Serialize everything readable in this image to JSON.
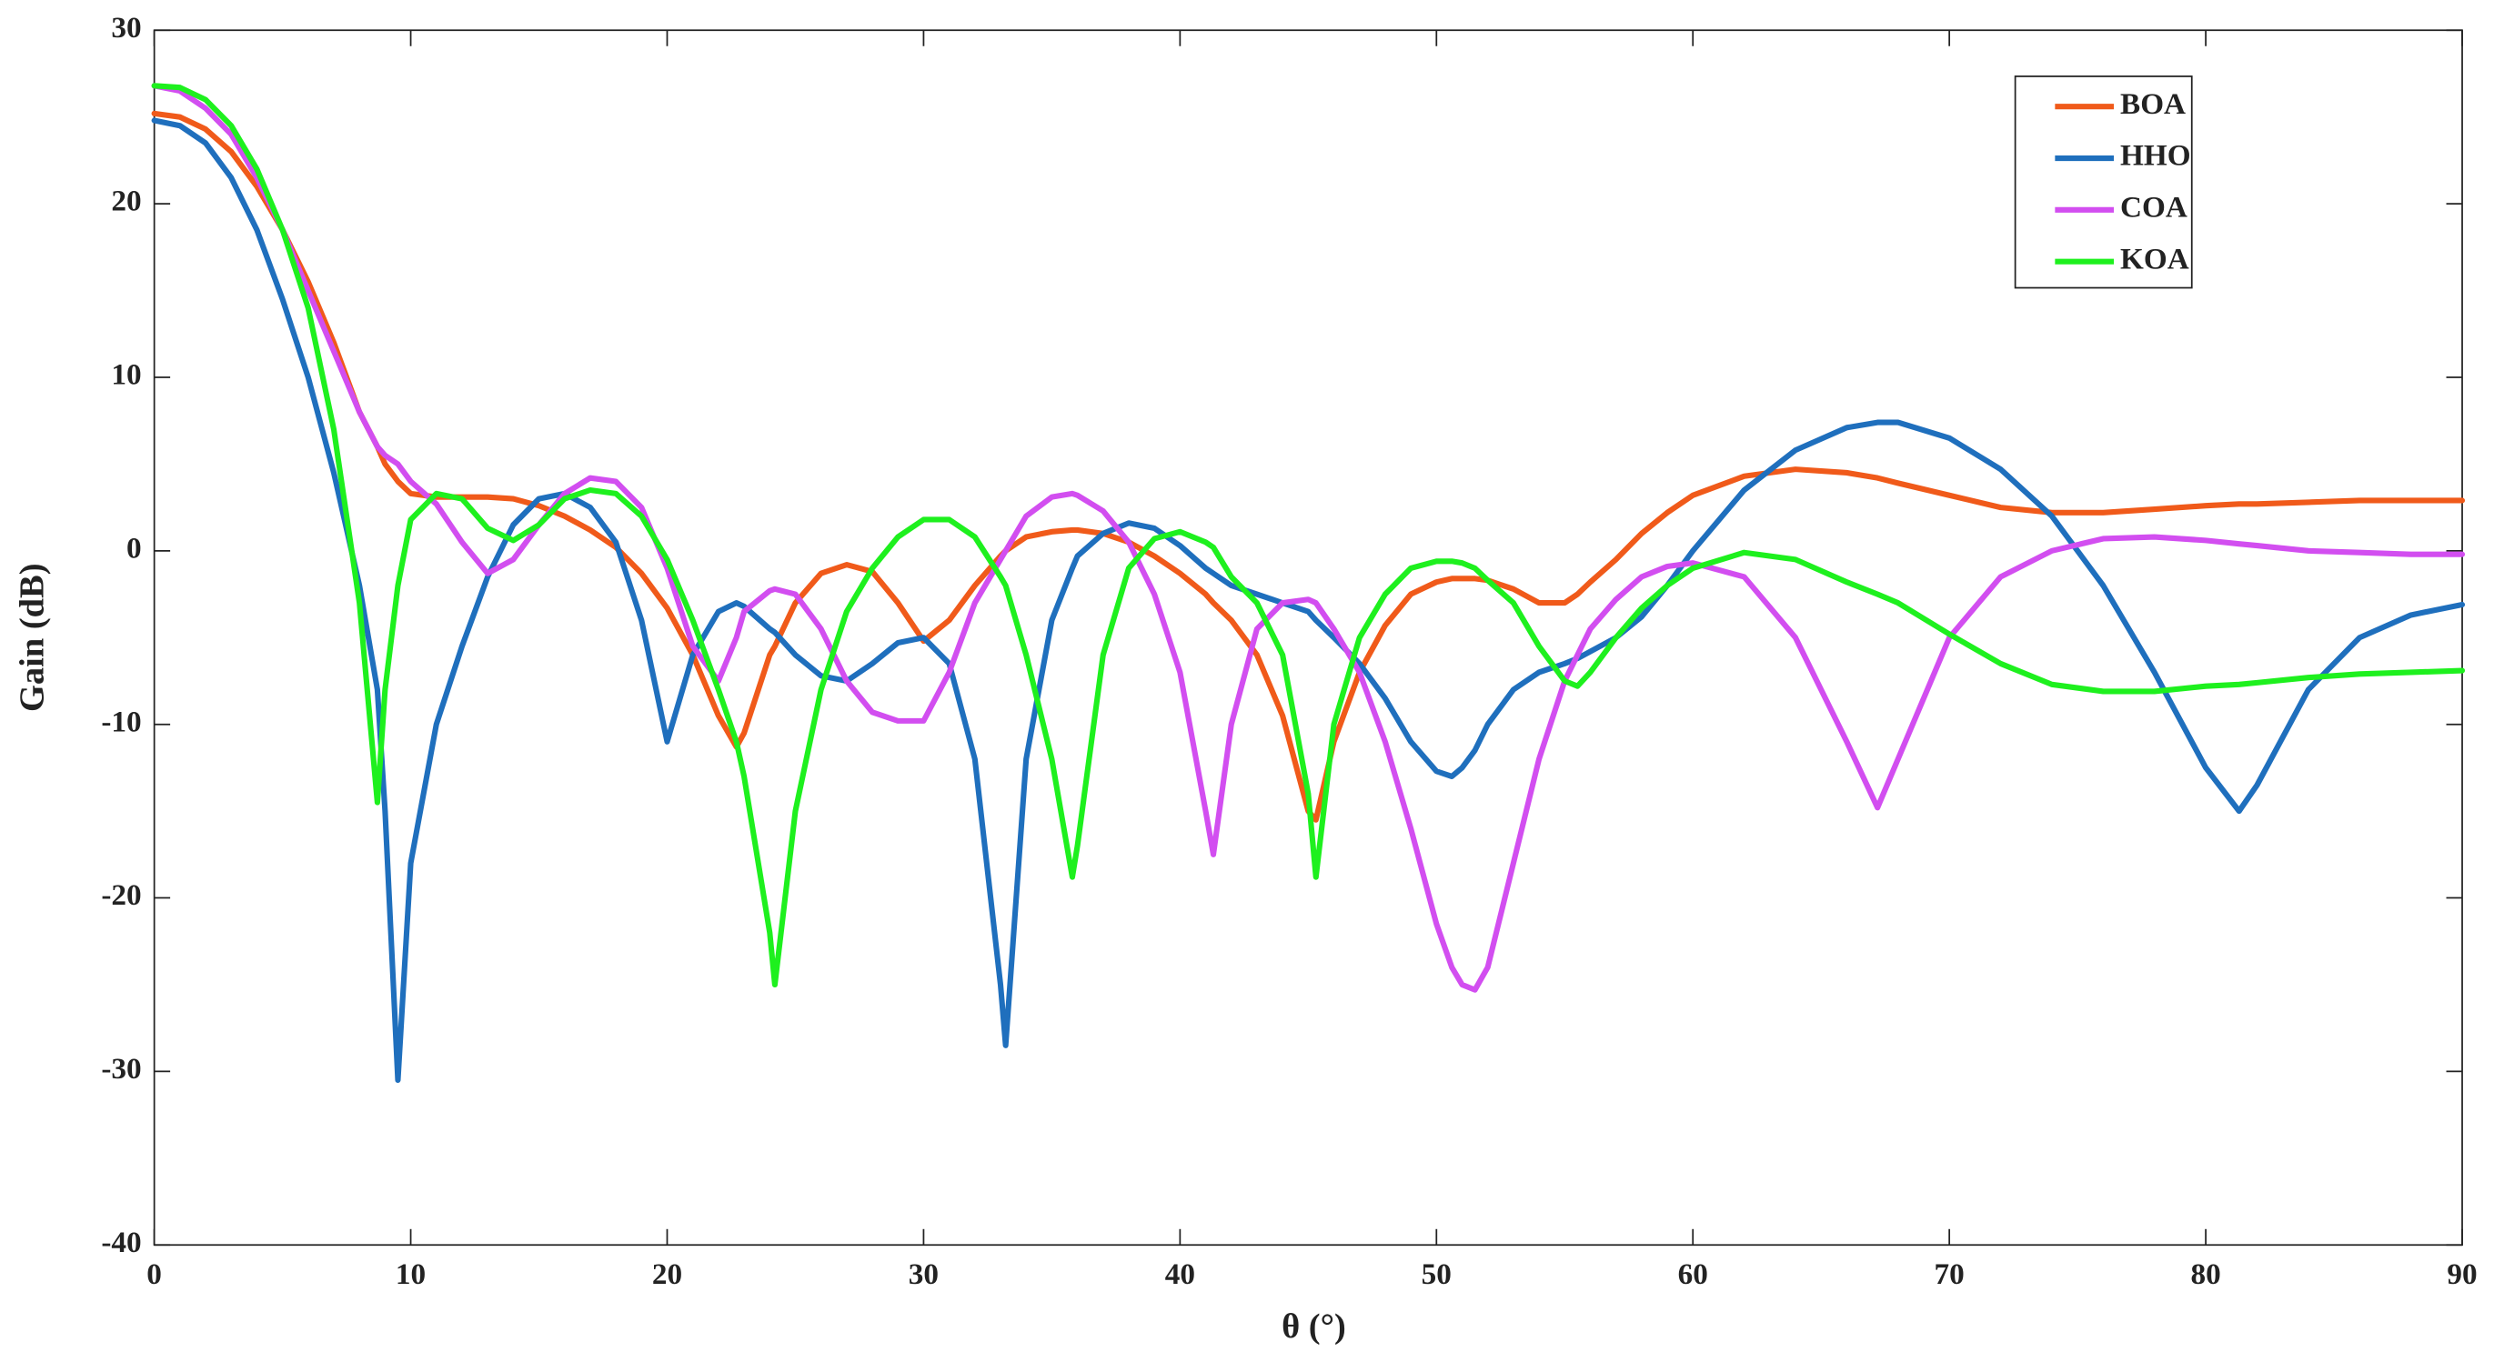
{
  "chart_data": {
    "type": "line",
    "x_label": "θ (°)",
    "y_label": "Gain (dB)",
    "xlim": [
      0,
      90
    ],
    "ylim": [
      -40,
      30
    ],
    "xticks": [
      0,
      10,
      20,
      30,
      40,
      50,
      60,
      70,
      80,
      90
    ],
    "yticks": [
      -40,
      -30,
      -20,
      -10,
      0,
      10,
      20,
      30
    ],
    "legend": "upper-right",
    "x": [
      0,
      1,
      2,
      3,
      4,
      5,
      6,
      7,
      8,
      8.7,
      9,
      9.5,
      10,
      11,
      12,
      13,
      14,
      15,
      16,
      17,
      18,
      19,
      20,
      21,
      22,
      22.7,
      23,
      24,
      24.2,
      25,
      26,
      27,
      28,
      29,
      30,
      31,
      32,
      33,
      33.2,
      34,
      35,
      35.8,
      36,
      37,
      38,
      39,
      40,
      41,
      41.3,
      42,
      43,
      44,
      45,
      45.3,
      46,
      47,
      48,
      49,
      50,
      50.6,
      51,
      51.5,
      52,
      53,
      54,
      55,
      55.5,
      56,
      57,
      58,
      59,
      60,
      62,
      64,
      66,
      67.2,
      68,
      70,
      72,
      74,
      76,
      78,
      80,
      81.3,
      82,
      84,
      86,
      88,
      90
    ],
    "series": [
      {
        "name": "BOA",
        "color": "#f05a1a",
        "values": [
          25.2,
          25,
          24.3,
          23,
          21,
          18.5,
          15.5,
          12,
          8,
          6,
          5,
          4,
          3.3,
          3.1,
          3.1,
          3.1,
          3,
          2.6,
          2,
          1.2,
          0.2,
          -1.3,
          -3.3,
          -6,
          -9.5,
          -11.3,
          -10.5,
          -6,
          -5.5,
          -3,
          -1.3,
          -0.8,
          -1.2,
          -3,
          -5.2,
          -4,
          -2,
          -0.3,
          0,
          0.8,
          1.1,
          1.2,
          1.2,
          1,
          0.5,
          -0.3,
          -1.3,
          -2.5,
          -3,
          -4,
          -6,
          -9.5,
          -15,
          -15.5,
          -11,
          -7,
          -4.3,
          -2.5,
          -1.8,
          -1.6,
          -1.6,
          -1.6,
          -1.7,
          -2.2,
          -3,
          -3,
          -2.5,
          -1.8,
          -0.5,
          1,
          2.2,
          3.2,
          4.3,
          4.7,
          4.5,
          4.2,
          3.9,
          3.2,
          2.5,
          2.2,
          2.2,
          2.4,
          2.6,
          2.7,
          2.7,
          2.8,
          2.9,
          2.9,
          2.9
        ]
      },
      {
        "name": "HHO",
        "color": "#1f6fbd",
        "values": [
          24.8,
          24.5,
          23.5,
          21.5,
          18.5,
          14.5,
          10,
          4.5,
          -2,
          -8,
          -15,
          -30.5,
          -18,
          -10,
          -5.5,
          -1.5,
          1.5,
          3,
          3.3,
          2.5,
          0.5,
          -4,
          -11,
          -6,
          -3.5,
          -3,
          -3.2,
          -4.5,
          -4.7,
          -6,
          -7.2,
          -7.5,
          -6.5,
          -5.3,
          -5,
          -6.5,
          -12,
          -25,
          -28.5,
          -12,
          -4,
          -1,
          -0.3,
          1,
          1.6,
          1.3,
          0.3,
          -1,
          -1.3,
          -2,
          -2.5,
          -3,
          -3.5,
          -4,
          -5,
          -6.5,
          -8.5,
          -11,
          -12.7,
          -13,
          -12.5,
          -11.5,
          -10,
          -8,
          -7,
          -6.5,
          -6.2,
          -5.8,
          -5,
          -3.8,
          -2,
          0,
          3.5,
          5.8,
          7.1,
          7.4,
          7.4,
          6.5,
          4.7,
          2,
          -2,
          -7,
          -12.5,
          -15,
          -13.5,
          -8,
          -5,
          -3.7,
          -3.1
        ]
      },
      {
        "name": "COA",
        "color": "#d24ef0",
        "values": [
          26.8,
          26.5,
          25.5,
          24,
          21.5,
          18.5,
          15,
          11.5,
          8,
          6,
          5.5,
          5,
          4,
          2.7,
          0.5,
          -1.3,
          -0.5,
          1.5,
          3.3,
          4.2,
          4,
          2.5,
          -1,
          -5.5,
          -7.5,
          -5,
          -3.5,
          -2.3,
          -2.2,
          -2.5,
          -4.5,
          -7.5,
          -9.3,
          -9.8,
          -9.8,
          -7,
          -3,
          -0.5,
          0,
          2,
          3.1,
          3.3,
          3.2,
          2.3,
          0.5,
          -2.5,
          -7,
          -15,
          -17.5,
          -10,
          -4.5,
          -3,
          -2.8,
          -3,
          -4.5,
          -7,
          -11,
          -16,
          -21.5,
          -24,
          -25,
          -25.3,
          -24,
          -18,
          -12,
          -7.5,
          -6,
          -4.5,
          -2.8,
          -1.5,
          -0.9,
          -0.7,
          -1.5,
          -5,
          -11,
          -14.8,
          -12,
          -5,
          -1.5,
          0,
          0.7,
          0.8,
          0.6,
          0.4,
          0.3,
          0,
          -0.1,
          -0.2,
          -0.2
        ]
      },
      {
        "name": "KOA",
        "color": "#1ef01e",
        "values": [
          26.8,
          26.7,
          26,
          24.5,
          22,
          18.5,
          14,
          7,
          -3,
          -14.5,
          -8,
          -2,
          1.8,
          3.3,
          3,
          1.3,
          0.6,
          1.5,
          3,
          3.5,
          3.3,
          2,
          -0.5,
          -4,
          -8,
          -11,
          -13,
          -22,
          -25,
          -15,
          -8,
          -3.5,
          -1,
          0.8,
          1.8,
          1.8,
          0.8,
          -1.5,
          -2,
          -6,
          -12,
          -18.8,
          -17,
          -6,
          -1,
          0.7,
          1.1,
          0.5,
          0.2,
          -1.5,
          -3,
          -6,
          -14,
          -18.8,
          -10,
          -5,
          -2.5,
          -1,
          -0.6,
          -0.6,
          -0.7,
          -1,
          -1.7,
          -3,
          -5.5,
          -7.5,
          -7.8,
          -7,
          -5,
          -3.3,
          -2,
          -1,
          -0.1,
          -0.5,
          -1.8,
          -2.5,
          -3,
          -4.8,
          -6.5,
          -7.7,
          -8.1,
          -8.1,
          -7.8,
          -7.7,
          -7.6,
          -7.3,
          -7.1,
          -7,
          -6.9
        ]
      }
    ]
  }
}
